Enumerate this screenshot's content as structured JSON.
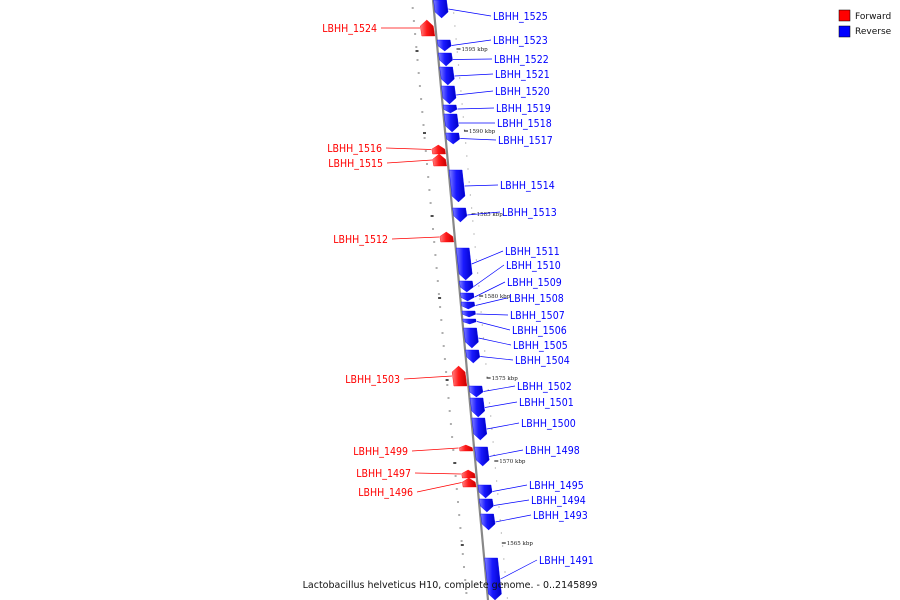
{
  "caption": "Lactobacillus helveticus H10, complete genome. - 0..2145899",
  "legend": [
    {
      "label": "Forward",
      "color": "#ff0000"
    },
    {
      "label": "Reverse",
      "color": "#0000ff"
    }
  ],
  "colors": {
    "forward": "#ff0000",
    "reverse": "#0000ff",
    "backbone": "#888888"
  },
  "ticks": [
    "1595 kbp",
    "1590 kbp",
    "1585 kbp",
    "1580 kbp",
    "1575 kbp",
    "1570 kbp",
    "1565 kbp"
  ],
  "genes": [
    {
      "name": "LBHH_1525",
      "strand": "reverse"
    },
    {
      "name": "LBHH_1524",
      "strand": "forward"
    },
    {
      "name": "LBHH_1523",
      "strand": "reverse"
    },
    {
      "name": "LBHH_1522",
      "strand": "reverse"
    },
    {
      "name": "LBHH_1521",
      "strand": "reverse"
    },
    {
      "name": "LBHH_1520",
      "strand": "reverse"
    },
    {
      "name": "LBHH_1519",
      "strand": "reverse"
    },
    {
      "name": "LBHH_1518",
      "strand": "reverse"
    },
    {
      "name": "LBHH_1517",
      "strand": "reverse"
    },
    {
      "name": "LBHH_1516",
      "strand": "forward"
    },
    {
      "name": "LBHH_1515",
      "strand": "forward"
    },
    {
      "name": "LBHH_1514",
      "strand": "reverse"
    },
    {
      "name": "LBHH_1513",
      "strand": "reverse"
    },
    {
      "name": "LBHH_1512",
      "strand": "forward"
    },
    {
      "name": "LBHH_1511",
      "strand": "reverse"
    },
    {
      "name": "LBHH_1510",
      "strand": "reverse"
    },
    {
      "name": "LBHH_1509",
      "strand": "reverse"
    },
    {
      "name": "LBHH_1508",
      "strand": "reverse"
    },
    {
      "name": "LBHH_1507",
      "strand": "reverse"
    },
    {
      "name": "LBHH_1506",
      "strand": "reverse"
    },
    {
      "name": "LBHH_1505",
      "strand": "reverse"
    },
    {
      "name": "LBHH_1504",
      "strand": "reverse"
    },
    {
      "name": "LBHH_1503",
      "strand": "forward"
    },
    {
      "name": "LBHH_1502",
      "strand": "reverse"
    },
    {
      "name": "LBHH_1501",
      "strand": "reverse"
    },
    {
      "name": "LBHH_1500",
      "strand": "reverse"
    },
    {
      "name": "LBHH_1499",
      "strand": "forward"
    },
    {
      "name": "LBHH_1498",
      "strand": "reverse"
    },
    {
      "name": "LBHH_1497",
      "strand": "forward"
    },
    {
      "name": "LBHH_1496",
      "strand": "forward"
    },
    {
      "name": "LBHH_1495",
      "strand": "reverse"
    },
    {
      "name": "LBHH_1494",
      "strand": "reverse"
    },
    {
      "name": "LBHH_1493",
      "strand": "reverse"
    },
    {
      "name": "LBHH_1491",
      "strand": "reverse"
    }
  ]
}
